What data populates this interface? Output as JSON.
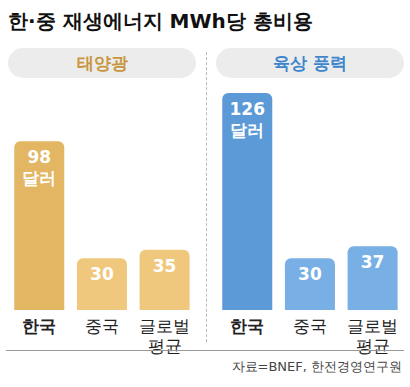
{
  "title": "한·중 재생에너지 MWh당 총비용",
  "source": "자료=BNEF, 한전경영연구원",
  "chart_data": [
    {
      "type": "bar",
      "title": "태양광",
      "categories": [
        "한국",
        "중국",
        "글로벌 평균"
      ],
      "values": [
        98,
        30,
        35
      ],
      "value_labels": [
        "98 달러",
        "30",
        "35"
      ],
      "colors": [
        "#e2b662",
        "#efc77d",
        "#efc77d"
      ],
      "ylim": [
        0,
        130
      ],
      "data_labels": true,
      "tick_labels": "x",
      "grid": false
    },
    {
      "type": "bar",
      "title": "육상 풍력",
      "categories": [
        "한국",
        "중국",
        "글로벌 평균"
      ],
      "values": [
        126,
        30,
        37
      ],
      "value_labels": [
        "126 달러",
        "30",
        "37"
      ],
      "colors": [
        "#5b9ad6",
        "#78afe4",
        "#78afe4"
      ],
      "ylim": [
        0,
        130
      ],
      "data_labels": true,
      "tick_labels": "x",
      "grid": false
    }
  ]
}
